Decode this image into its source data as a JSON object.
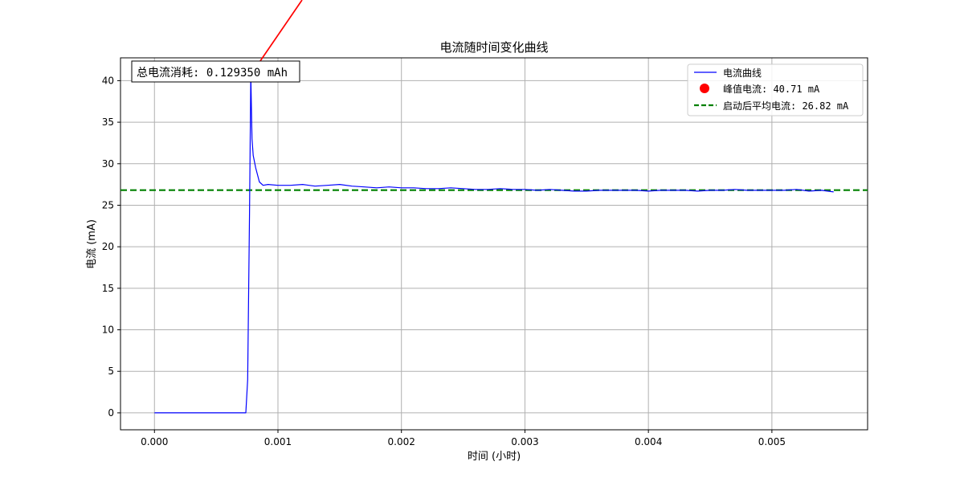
{
  "chart_data": {
    "type": "line",
    "title": "电流随时间变化曲线",
    "xlabel": "时间 (小时)",
    "ylabel": "电流 (mA)",
    "xlim": [
      -0.000275,
      0.005775
    ],
    "ylim": [
      -2.04,
      42.75
    ],
    "x_ticks": [
      0.0,
      0.001,
      0.002,
      0.003,
      0.004,
      0.005
    ],
    "x_tick_labels": [
      "0.000",
      "0.001",
      "0.002",
      "0.003",
      "0.004",
      "0.005"
    ],
    "y_ticks": [
      0,
      5,
      10,
      15,
      20,
      25,
      30,
      35,
      40
    ],
    "y_tick_labels": [
      "0",
      "5",
      "10",
      "15",
      "20",
      "25",
      "30",
      "35",
      "40"
    ],
    "grid": true,
    "legend_position": "top-right",
    "series": [
      {
        "name": "电流曲线",
        "kind": "line",
        "color": "#0000ff",
        "x": [
          0.0,
          0.0005,
          0.00074,
          0.000755,
          0.00077,
          0.00078,
          0.00079,
          0.0008,
          0.00082,
          0.00085,
          0.00088,
          0.00092,
          0.001,
          0.0011,
          0.0012,
          0.0013,
          0.0014,
          0.0015,
          0.0016,
          0.0017,
          0.0018,
          0.0019,
          0.002,
          0.0021,
          0.0022,
          0.0023,
          0.0024,
          0.0025,
          0.0026,
          0.0027,
          0.0028,
          0.0029,
          0.003,
          0.0031,
          0.0032,
          0.0033,
          0.0034,
          0.0035,
          0.0036,
          0.0037,
          0.0038,
          0.0039,
          0.004,
          0.0041,
          0.0042,
          0.0043,
          0.0044,
          0.0045,
          0.0046,
          0.0047,
          0.0048,
          0.0049,
          0.005,
          0.0051,
          0.0052,
          0.0053,
          0.0054,
          0.0055
        ],
        "y": [
          0.0,
          0.0,
          0.0,
          4.0,
          24.0,
          40.71,
          33.0,
          31.0,
          29.5,
          27.8,
          27.4,
          27.5,
          27.4,
          27.4,
          27.5,
          27.3,
          27.4,
          27.5,
          27.3,
          27.2,
          27.1,
          27.2,
          27.1,
          27.1,
          27.0,
          27.0,
          27.1,
          27.0,
          26.9,
          26.9,
          27.0,
          26.9,
          26.9,
          26.8,
          26.9,
          26.8,
          26.7,
          26.7,
          26.8,
          26.8,
          26.8,
          26.8,
          26.7,
          26.8,
          26.8,
          26.8,
          26.7,
          26.8,
          26.8,
          26.9,
          26.8,
          26.8,
          26.8,
          26.8,
          26.9,
          26.7,
          26.8,
          26.6
        ]
      },
      {
        "name": "峰值电流: 40.71 mA",
        "kind": "scatter",
        "color": "#ff0000",
        "x": [
          0.00078
        ],
        "y": [
          40.71
        ]
      },
      {
        "name": "启动后平均电流: 26.82 mA",
        "kind": "hline",
        "color": "#008000",
        "y": 26.82
      }
    ],
    "annotation": {
      "text": "总电流消耗: 0.129350 mAh",
      "arrow_target": {
        "x": 0.00078,
        "y": 40.71
      },
      "arrow_color": "#ff0000"
    }
  }
}
